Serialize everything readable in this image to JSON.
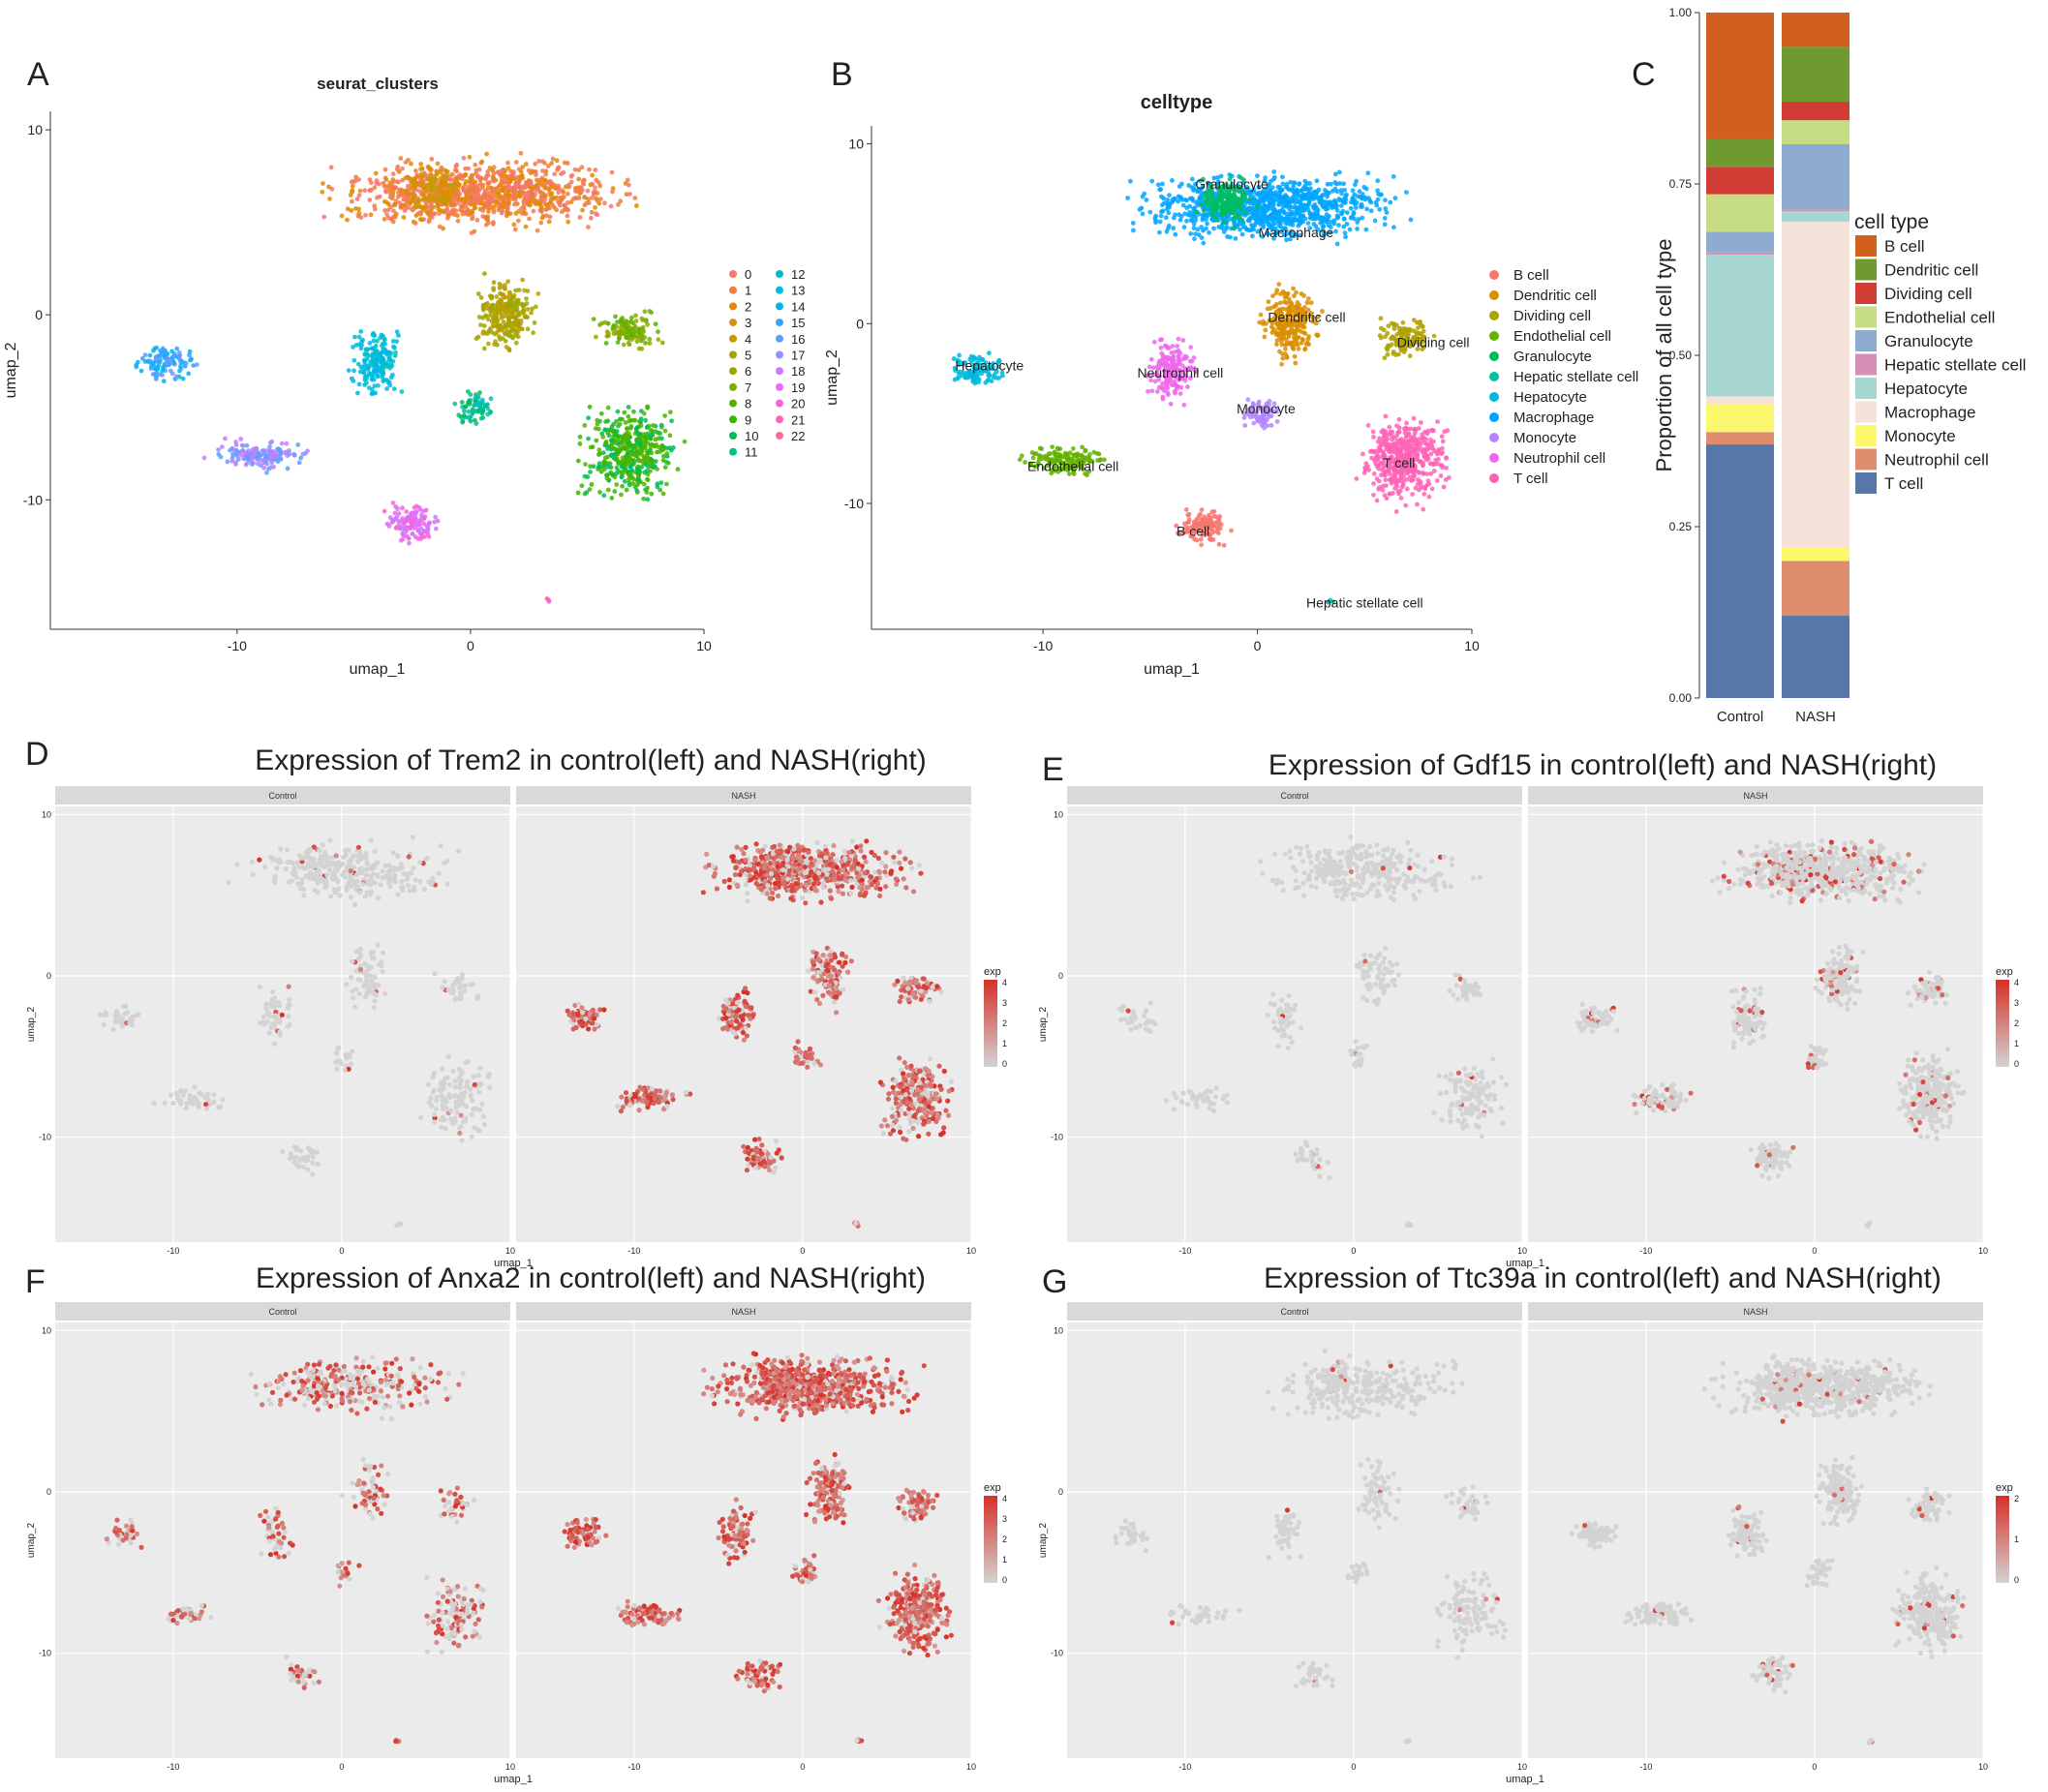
{
  "colors": {
    "panel_bg": "#ebebeb",
    "strip_bg": "#d9d9d9",
    "grid": "#ffffff",
    "gray_point": "#d3d3d3",
    "expr_high": "#d73027",
    "cluster_palette": [
      "#f8766d",
      "#f07c45",
      "#e38900",
      "#d1941a",
      "#c49a00",
      "#a3a500",
      "#99a800",
      "#7cae00",
      "#53b400",
      "#39b600",
      "#00bc56",
      "#00c08b",
      "#00bfc4",
      "#00bbdb",
      "#00b4ef",
      "#35a2ff",
      "#619cff",
      "#9590ff",
      "#c77cff",
      "#e76bf3",
      "#fa62db",
      "#ff62bc",
      "#ff6c91"
    ],
    "celltype_umap": {
      "B cell": "#f8766d",
      "Dendritic cell": "#db8e00",
      "Dividing cell": "#aea200",
      "Endothelial cell": "#64b200",
      "Granulocyte": "#00bd5c",
      "Hepatic stellate cell": "#00c1a7",
      "Hepatocyte": "#00bade",
      "Macrophage": "#00a6ff",
      "Monocyte": "#b385ff",
      "Neutrophil cell": "#ef67eb",
      "T cell": "#ff63b6"
    }
  },
  "panel_letters": [
    "A",
    "B",
    "C",
    "D",
    "E",
    "F",
    "G"
  ],
  "panel_A": {
    "title": "seurat_clusters",
    "xlabel": "umap_1",
    "ylabel": "umap_2",
    "xticks": [
      "-10",
      "0",
      "10"
    ],
    "yticks": [
      "10",
      "0",
      "-10"
    ],
    "legend": [
      "0",
      "1",
      "2",
      "3",
      "4",
      "5",
      "6",
      "7",
      "8",
      "9",
      "10",
      "11",
      "12",
      "13",
      "14",
      "15",
      "16",
      "17",
      "18",
      "19",
      "20",
      "21",
      "22"
    ]
  },
  "panel_B": {
    "title": "celltype",
    "xlabel": "umap_1",
    "ylabel": "umap_2",
    "xticks": [
      "-10",
      "0",
      "10"
    ],
    "yticks": [
      "10",
      "0",
      "-10"
    ],
    "legend": [
      "B cell",
      "Dendritic cell",
      "Dividing cell",
      "Endothelial cell",
      "Granulocyte",
      "Hepatic stellate cell",
      "Hepatocyte",
      "Macrophage",
      "Monocyte",
      "Neutrophil cell",
      "T cell"
    ]
  },
  "umap_groups": [
    {
      "name": "Macrophage",
      "cx": 0.5,
      "cy": 6.5,
      "rx": 7.5,
      "ry": 2.3
    },
    {
      "name": "Granulocyte",
      "cx": -1.5,
      "cy": 6.8,
      "rx": 1.6,
      "ry": 1.6
    },
    {
      "name": "Dendritic cell",
      "cx": 1.5,
      "cy": 0.0,
      "rx": 1.6,
      "ry": 2.6
    },
    {
      "name": "Dividing cell",
      "cx": 6.8,
      "cy": -0.8,
      "rx": 1.6,
      "ry": 1.3
    },
    {
      "name": "T cell",
      "cx": 6.8,
      "cy": -7.5,
      "rx": 2.5,
      "ry": 3.1
    },
    {
      "name": "Monocyte",
      "cx": 0.2,
      "cy": -5.0,
      "rx": 1.0,
      "ry": 1.2
    },
    {
      "name": "Neutrophil cell",
      "cx": -4.0,
      "cy": -2.6,
      "rx": 1.4,
      "ry": 2.2
    },
    {
      "name": "Hepatocyte",
      "cx": -13.0,
      "cy": -2.6,
      "rx": 1.6,
      "ry": 1.2
    },
    {
      "name": "Endothelial cell",
      "cx": -9.0,
      "cy": -7.6,
      "rx": 2.6,
      "ry": 1.0
    },
    {
      "name": "B cell",
      "cx": -2.5,
      "cy": -11.3,
      "rx": 1.5,
      "ry": 1.4
    },
    {
      "name": "Hepatic stellate cell",
      "cx": 3.3,
      "cy": -15.4,
      "rx": 0.3,
      "ry": 0.2
    }
  ],
  "panel_C": {
    "ylabel": "Proportion of all cell type",
    "legend_title": "cell type",
    "yticks": [
      "1.00",
      "0.75",
      "0.50",
      "0.25",
      "0.00"
    ]
  },
  "chart_data": [
    {
      "type": "scatter",
      "title": "seurat_clusters",
      "xlabel": "umap_1",
      "ylabel": "umap_2",
      "xlim": [
        -18,
        10
      ],
      "ylim": [
        -17,
        10.5
      ],
      "series": "23 Seurat clusters (0-22) on UMAP embedding"
    },
    {
      "type": "scatter",
      "title": "celltype",
      "xlabel": "umap_1",
      "ylabel": "umap_2",
      "xlim": [
        -18,
        10
      ],
      "ylim": [
        -17,
        11
      ],
      "series": "11 annotated cell types on UMAP embedding"
    },
    {
      "type": "bar",
      "stacked": true,
      "categories": [
        "Control",
        "NASH"
      ],
      "ylabel": "Proportion of all cell type",
      "ylim": [
        0,
        1
      ],
      "series": [
        {
          "name": "B cell",
          "color": "#d1601e",
          "values": [
            0.185,
            0.05
          ]
        },
        {
          "name": "Dendritic cell",
          "color": "#6f9a2f",
          "values": [
            0.04,
            0.08
          ]
        },
        {
          "name": "Dividing cell",
          "color": "#d13c35",
          "values": [
            0.04,
            0.027
          ]
        },
        {
          "name": "Endothelial cell",
          "color": "#c7dd83",
          "values": [
            0.055,
            0.035
          ]
        },
        {
          "name": "Granulocyte",
          "color": "#8eabd0",
          "values": [
            0.03,
            0.095
          ]
        },
        {
          "name": "Hepatic stellate cell",
          "color": "#d58fb6",
          "values": [
            0.003,
            0.003
          ]
        },
        {
          "name": "Hepatocyte",
          "color": "#a7d5cf",
          "values": [
            0.207,
            0.015
          ]
        },
        {
          "name": "Macrophage",
          "color": "#f5e2d9",
          "values": [
            0.012,
            0.475
          ]
        },
        {
          "name": "Monocyte",
          "color": "#fcf86e",
          "values": [
            0.04,
            0.02
          ]
        },
        {
          "name": "Neutrophil cell",
          "color": "#df8d6f",
          "values": [
            0.018,
            0.08
          ]
        },
        {
          "name": "T cell",
          "color": "#5677a7",
          "values": [
            0.37,
            0.12
          ]
        }
      ]
    },
    {
      "type": "scatter",
      "title": "Expression of Trem2 in control(left) and NASH(right)",
      "facets": [
        "Control",
        "NASH"
      ],
      "xlabel": "umap_1",
      "ylabel": "umap_2",
      "legend_title": "exp",
      "legend_ticks": [
        "4",
        "3",
        "2",
        "1",
        "0"
      ],
      "scale_max": 4,
      "expression_level": {
        "Control": 0.05,
        "NASH": 0.8
      }
    },
    {
      "type": "scatter",
      "title": "Expression of Gdf15 in control(left) and NASH(right)",
      "facets": [
        "Control",
        "NASH"
      ],
      "xlabel": "umap_1",
      "ylabel": "umap_2",
      "legend_title": "exp",
      "legend_ticks": [
        "4",
        "3",
        "2",
        "1",
        "0"
      ],
      "scale_max": 4,
      "expression_level": {
        "Control": 0.02,
        "NASH": 0.15
      }
    },
    {
      "type": "scatter",
      "title": "Expression of Anxa2 in control(left) and NASH(right)",
      "facets": [
        "Control",
        "NASH"
      ],
      "xlabel": "umap_1",
      "ylabel": "umap_2",
      "legend_title": "exp",
      "legend_ticks": [
        "4",
        "3",
        "2",
        "1",
        "0"
      ],
      "scale_max": 4,
      "expression_level": {
        "Control": 0.55,
        "NASH": 0.9
      }
    },
    {
      "type": "scatter",
      "title": "Expression of Ttc39a in control(left) and NASH(right)",
      "facets": [
        "Control",
        "NASH"
      ],
      "xlabel": "umap_1",
      "ylabel": "umap_2",
      "legend_title": "exp",
      "legend_ticks": [
        "2",
        "1",
        "0"
      ],
      "scale_max": 2,
      "expression_level": {
        "Control": 0.03,
        "NASH": 0.04
      }
    }
  ],
  "expression_panels": {
    "xticks": [
      "-10",
      "0",
      "10"
    ],
    "yticks": [
      "10",
      "0",
      "-10"
    ]
  }
}
